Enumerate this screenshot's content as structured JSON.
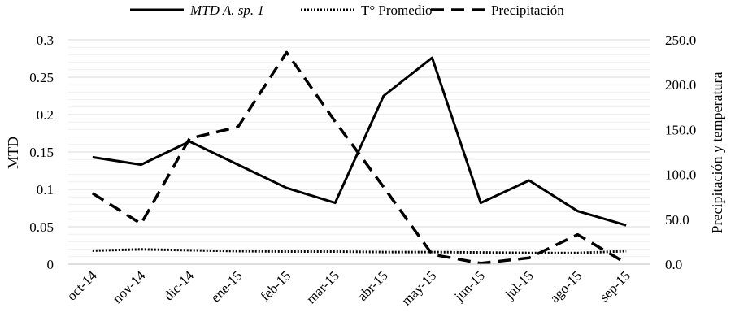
{
  "chart_data": {
    "type": "line",
    "categories": [
      "oct-14",
      "nov-14",
      "dic-14",
      "ene-15",
      "feb-15",
      "mar-15",
      "abr-15",
      "may-15",
      "jun-15",
      "jul-15",
      "ago-15",
      "sep-15"
    ],
    "series": [
      {
        "name": "MTD A. sp. 1",
        "axis": "left",
        "style": "solid",
        "values": [
          0.143,
          0.133,
          0.164,
          0.133,
          0.102,
          0.082,
          0.225,
          0.276,
          0.082,
          0.112,
          0.071,
          0.052
        ]
      },
      {
        "name": "T° Promedio",
        "axis": "right",
        "style": "dotted",
        "values": [
          15.0,
          16.5,
          15.5,
          14.5,
          14.0,
          14.0,
          13.5,
          13.5,
          13.0,
          12.5,
          12.5,
          14.5
        ]
      },
      {
        "name": "Precipitación",
        "axis": "right",
        "style": "dashed",
        "values": [
          79,
          45,
          140,
          153,
          236,
          159,
          86,
          11,
          1,
          7,
          33,
          1
        ]
      }
    ],
    "ylabel_left": "MTD",
    "ylabel_right": "Precipitación y temperatura",
    "ylim_left": [
      0,
      0.3
    ],
    "ylim_right": [
      0,
      250
    ],
    "yticks_left": [
      "0",
      "0.05",
      "0.1",
      "0.15",
      "0.2",
      "0.25",
      "0.3"
    ],
    "yticks_right": [
      "0.0",
      "50.0",
      "100.0",
      "150.0",
      "200.0",
      "250.0"
    ],
    "grid": true,
    "legend_position": "top"
  }
}
